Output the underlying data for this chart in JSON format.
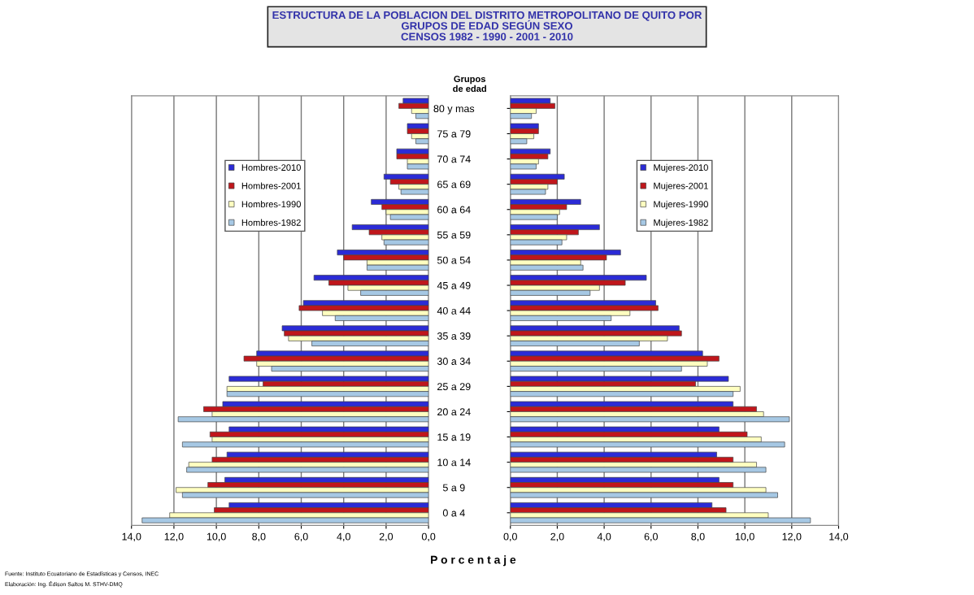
{
  "chart_data": [
    {
      "type": "bar",
      "orientation": "horizontal",
      "title": "ESTRUCTURA DE LA POBLACION DEL DISTRITO METROPOLITANO DE QUITO POR\nGRUPOS DE EDAD SEGÚN SEXO\nCENSOS 1982 - 1990 - 2001 - 2010",
      "xlabel": "P o r c e n t a j e",
      "series": [
        {
          "name": "Hombres-2010",
          "color": "#2b2bd6",
          "values": [
            1.2,
            1.0,
            1.5,
            2.1,
            2.7,
            3.6,
            4.3,
            5.4,
            5.9,
            6.9,
            8.1,
            9.4,
            9.7,
            9.4,
            9.5,
            9.6,
            9.4
          ]
        },
        {
          "name": "Hombres-2001",
          "color": "#c0161b",
          "values": [
            1.4,
            1.0,
            1.5,
            1.8,
            2.2,
            2.8,
            4.0,
            4.7,
            6.1,
            6.8,
            8.7,
            7.8,
            10.6,
            10.3,
            10.2,
            10.4,
            10.1
          ]
        },
        {
          "name": "Hombres-1990",
          "color": "#ffffc0",
          "values": [
            0.8,
            0.8,
            1.0,
            1.4,
            2.0,
            2.2,
            2.9,
            3.8,
            5.0,
            6.6,
            8.1,
            9.5,
            10.2,
            10.2,
            11.3,
            11.9,
            12.2
          ]
        },
        {
          "name": "Hombres-1982",
          "color": "#a6c8e4",
          "values": [
            0.6,
            0.6,
            1.0,
            1.3,
            1.8,
            2.1,
            2.9,
            3.2,
            4.4,
            5.5,
            7.4,
            9.5,
            11.8,
            11.6,
            11.4,
            11.6,
            13.5
          ]
        }
      ],
      "xlim": [
        14,
        0
      ],
      "xticks": [
        {
          "value": 14,
          "label": "14,0"
        },
        {
          "value": 12,
          "label": "12,0"
        },
        {
          "value": 10,
          "label": "10,0"
        },
        {
          "value": 8,
          "label": "8,0"
        },
        {
          "value": 6,
          "label": "6,0"
        },
        {
          "value": 4,
          "label": "4,0"
        },
        {
          "value": 2,
          "label": "2,0"
        },
        {
          "value": 0,
          "label": "0,0"
        }
      ],
      "grid": "x",
      "legend": "top left",
      "annotations": [
        "Fuente: Instituto Ecuatoriano de Estadísticas y Censos, INEC",
        "Elaboración: Ing. Édison Saltos M. STHV-DMQ"
      ]
    },
    {
      "type": "bar",
      "orientation": "horizontal",
      "ylabel": "Grupos\nde edad",
      "categories": [
        "80 y mas",
        "75 a 79",
        "70 a 74",
        "65 a 69",
        "60 a 64",
        "55 a 59",
        "50 a 54",
        "45 a 49",
        "40 a 44",
        "35 a 39",
        "30 a 34",
        "25 a 29",
        "20 a 24",
        "15 a 19",
        "10 a 14",
        "5 a 9",
        "0 a 4"
      ],
      "series": [
        {
          "name": "Mujeres-2010",
          "color": "#2b2bd6",
          "values": [
            1.7,
            1.2,
            1.7,
            2.3,
            3.0,
            3.8,
            4.7,
            5.8,
            6.2,
            7.2,
            8.2,
            9.3,
            9.5,
            8.9,
            8.8,
            8.9,
            8.6
          ]
        },
        {
          "name": "Mujeres-2001",
          "color": "#c0161b",
          "values": [
            1.9,
            1.2,
            1.6,
            2.0,
            2.4,
            2.9,
            4.1,
            4.9,
            6.3,
            7.3,
            8.9,
            7.9,
            10.5,
            10.1,
            9.5,
            9.5,
            9.2
          ]
        },
        {
          "name": "Mujeres-1990",
          "color": "#ffffc0",
          "values": [
            1.1,
            1.0,
            1.2,
            1.6,
            2.1,
            2.4,
            3.0,
            3.8,
            5.1,
            6.7,
            8.4,
            9.8,
            10.8,
            10.7,
            10.5,
            10.9,
            11.0
          ]
        },
        {
          "name": "Mujeres-1982",
          "color": "#a6c8e4",
          "values": [
            0.9,
            0.7,
            1.1,
            1.5,
            2.0,
            2.2,
            3.1,
            3.4,
            4.3,
            5.5,
            7.3,
            9.5,
            11.9,
            11.7,
            10.9,
            11.4,
            12.8
          ]
        }
      ],
      "xlim": [
        0,
        14
      ],
      "xticks": [
        {
          "value": 0,
          "label": "0,0"
        },
        {
          "value": 2,
          "label": "2,0"
        },
        {
          "value": 4,
          "label": "4,0"
        },
        {
          "value": 6,
          "label": "6,0"
        },
        {
          "value": 8,
          "label": "8,0"
        },
        {
          "value": 10,
          "label": "10,0"
        },
        {
          "value": 12,
          "label": "12,0"
        },
        {
          "value": 14,
          "label": "14,0"
        }
      ],
      "grid": "x",
      "legend": "top"
    }
  ]
}
